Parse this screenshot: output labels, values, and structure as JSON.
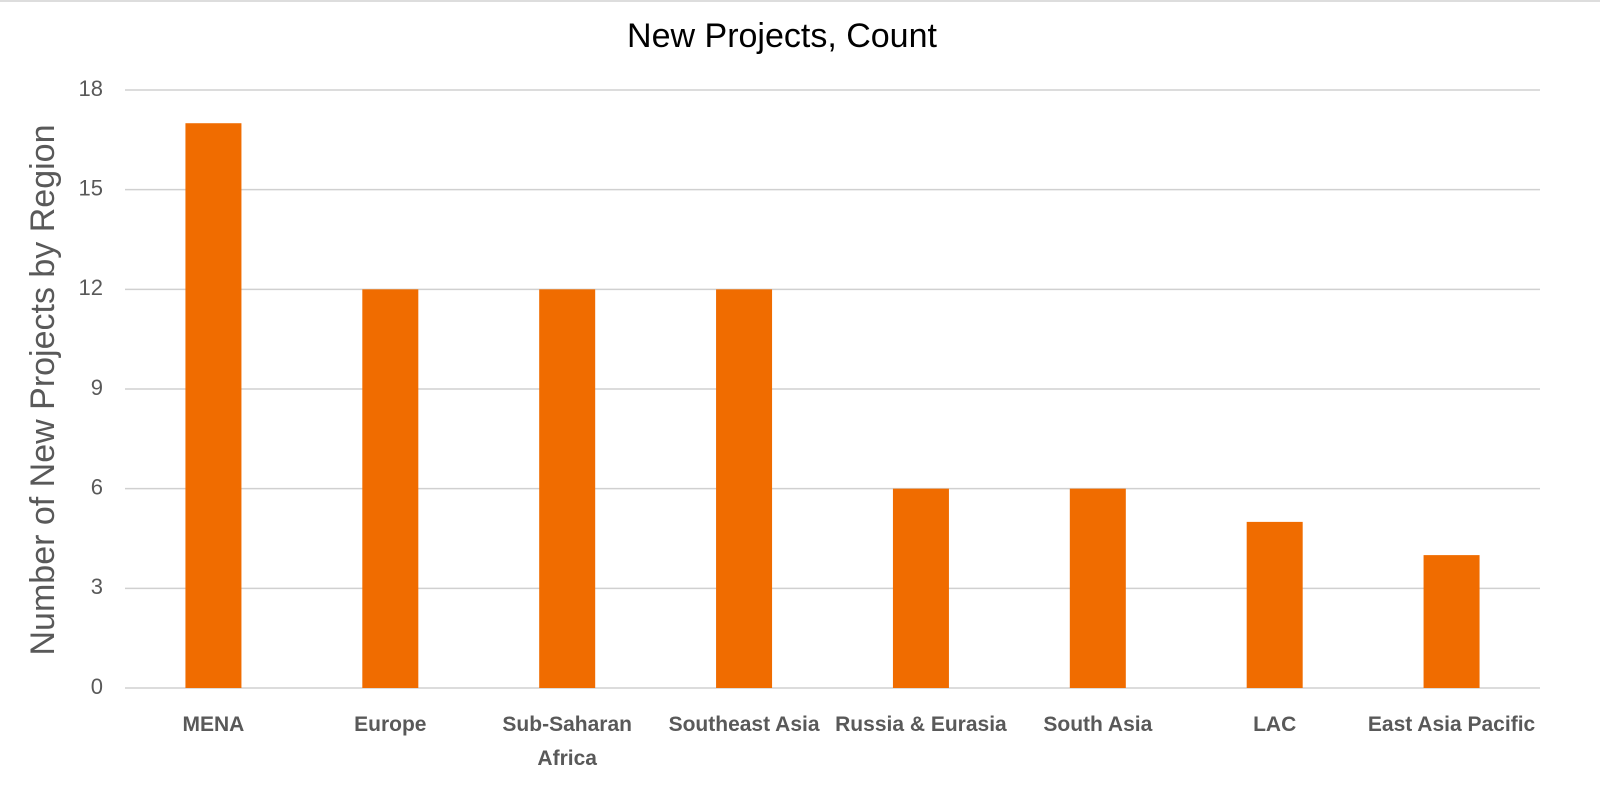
{
  "chart_data": {
    "type": "bar",
    "title": "New Projects, Count",
    "y_label": "Number of New Projects by Region",
    "categories": [
      "MENA",
      "Europe",
      "Sub-Saharan Africa",
      "Southeast Asia",
      "Russia & Eurasia",
      "South Asia",
      "LAC",
      "East Asia Pacific"
    ],
    "values": [
      17,
      12,
      12,
      12,
      6,
      6,
      5,
      4
    ],
    "color": "#f06c00",
    "ylim": [
      0,
      18
    ],
    "yticks": [
      0,
      3,
      6,
      9,
      12,
      15,
      18
    ],
    "grid": true
  }
}
